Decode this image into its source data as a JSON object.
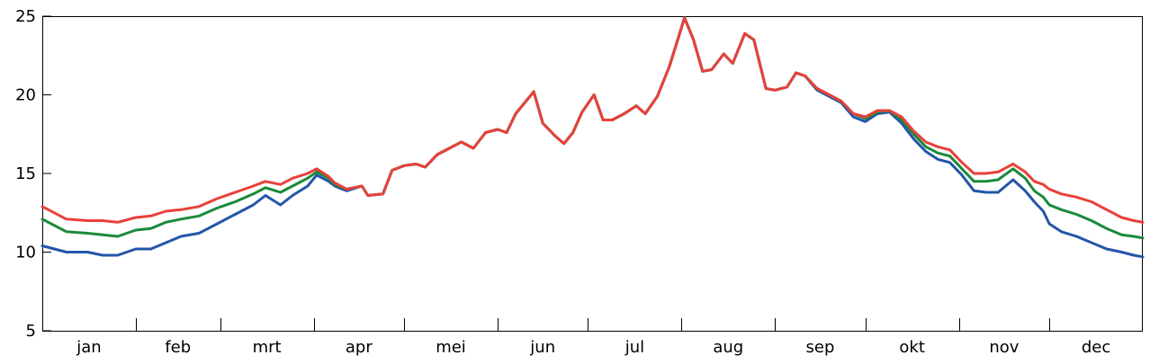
{
  "chart_data": {
    "type": "line",
    "title": "",
    "xlabel": "",
    "ylabel": "",
    "ylim": [
      5,
      25
    ],
    "xlim": [
      0,
      365
    ],
    "yticks": [
      5,
      10,
      15,
      20,
      25
    ],
    "months": [
      "jan",
      "feb",
      "mrt",
      "apr",
      "mei",
      "jun",
      "jul",
      "aug",
      "sep",
      "okt",
      "nov",
      "dec"
    ],
    "month_boundaries": [
      0,
      31,
      59,
      90,
      120,
      151,
      181,
      212,
      243,
      273,
      304,
      334,
      365
    ],
    "grid": false,
    "legend": "none",
    "series": [
      {
        "color": "#2356a8",
        "points": [
          [
            0,
            10.4
          ],
          [
            4,
            10.2
          ],
          [
            8,
            10.0
          ],
          [
            15,
            10.0
          ],
          [
            20,
            9.8
          ],
          [
            25,
            9.8
          ],
          [
            31,
            10.2
          ],
          [
            36,
            10.2
          ],
          [
            41,
            10.6
          ],
          [
            46,
            11.0
          ],
          [
            52,
            11.2
          ],
          [
            58,
            11.8
          ],
          [
            64,
            12.4
          ],
          [
            70,
            13.0
          ],
          [
            74,
            13.6
          ],
          [
            79,
            13.0
          ],
          [
            83,
            13.6
          ],
          [
            88,
            14.2
          ],
          [
            91,
            14.9
          ],
          [
            95,
            14.5
          ],
          [
            97,
            14.2
          ],
          [
            101,
            13.9
          ],
          [
            106,
            14.2
          ],
          [
            108,
            13.6
          ],
          [
            113,
            13.7
          ],
          [
            116,
            15.2
          ],
          [
            120,
            15.5
          ],
          [
            124,
            15.6
          ],
          [
            127,
            15.4
          ],
          [
            131,
            16.2
          ],
          [
            135,
            16.6
          ],
          [
            139,
            17.0
          ],
          [
            143,
            16.6
          ],
          [
            147,
            17.6
          ],
          [
            151,
            17.8
          ],
          [
            154,
            17.6
          ],
          [
            157,
            18.8
          ],
          [
            160,
            19.5
          ],
          [
            163,
            20.2
          ],
          [
            166,
            18.2
          ],
          [
            170,
            17.4
          ],
          [
            173,
            16.9
          ],
          [
            176,
            17.6
          ],
          [
            179,
            18.9
          ],
          [
            183,
            20.0
          ],
          [
            186,
            18.4
          ],
          [
            189,
            18.4
          ],
          [
            193,
            18.8
          ],
          [
            197,
            19.3
          ],
          [
            200,
            18.8
          ],
          [
            204,
            19.9
          ],
          [
            208,
            21.8
          ],
          [
            213,
            24.9
          ],
          [
            216,
            23.5
          ],
          [
            219,
            21.5
          ],
          [
            222,
            21.6
          ],
          [
            226,
            22.6
          ],
          [
            229,
            22.0
          ],
          [
            233,
            23.9
          ],
          [
            236,
            23.5
          ],
          [
            240,
            20.4
          ],
          [
            243,
            20.3
          ],
          [
            247,
            20.5
          ],
          [
            250,
            21.4
          ],
          [
            253,
            21.2
          ],
          [
            257,
            20.3
          ],
          [
            261,
            19.9
          ],
          [
            265,
            19.5
          ],
          [
            269,
            18.6
          ],
          [
            273,
            18.3
          ],
          [
            277,
            18.8
          ],
          [
            281,
            18.9
          ],
          [
            285,
            18.2
          ],
          [
            289,
            17.2
          ],
          [
            293,
            16.4
          ],
          [
            297,
            15.9
          ],
          [
            301,
            15.7
          ],
          [
            305,
            14.9
          ],
          [
            309,
            13.9
          ],
          [
            313,
            13.8
          ],
          [
            317,
            13.8
          ],
          [
            322,
            14.6
          ],
          [
            326,
            13.9
          ],
          [
            329,
            13.2
          ],
          [
            332,
            12.6
          ],
          [
            334,
            11.8
          ],
          [
            338,
            11.3
          ],
          [
            343,
            11.0
          ],
          [
            348,
            10.6
          ],
          [
            353,
            10.2
          ],
          [
            358,
            10.0
          ],
          [
            362,
            9.8
          ],
          [
            365,
            9.7
          ]
        ]
      },
      {
        "color": "#1a8a3a",
        "points": [
          [
            0,
            12.1
          ],
          [
            4,
            11.7
          ],
          [
            8,
            11.3
          ],
          [
            15,
            11.2
          ],
          [
            20,
            11.1
          ],
          [
            25,
            11.0
          ],
          [
            31,
            11.4
          ],
          [
            36,
            11.5
          ],
          [
            41,
            11.9
          ],
          [
            46,
            12.1
          ],
          [
            52,
            12.3
          ],
          [
            58,
            12.8
          ],
          [
            64,
            13.2
          ],
          [
            70,
            13.7
          ],
          [
            74,
            14.1
          ],
          [
            79,
            13.8
          ],
          [
            83,
            14.2
          ],
          [
            88,
            14.7
          ],
          [
            91,
            15.1
          ],
          [
            95,
            14.7
          ],
          [
            97,
            14.3
          ],
          [
            101,
            14.0
          ],
          [
            106,
            14.2
          ],
          [
            108,
            13.6
          ],
          [
            113,
            13.7
          ],
          [
            116,
            15.2
          ],
          [
            120,
            15.5
          ],
          [
            124,
            15.6
          ],
          [
            127,
            15.4
          ],
          [
            131,
            16.2
          ],
          [
            135,
            16.6
          ],
          [
            139,
            17.0
          ],
          [
            143,
            16.6
          ],
          [
            147,
            17.6
          ],
          [
            151,
            17.8
          ],
          [
            154,
            17.6
          ],
          [
            157,
            18.8
          ],
          [
            160,
            19.5
          ],
          [
            163,
            20.2
          ],
          [
            166,
            18.2
          ],
          [
            170,
            17.4
          ],
          [
            173,
            16.9
          ],
          [
            176,
            17.6
          ],
          [
            179,
            18.9
          ],
          [
            183,
            20.0
          ],
          [
            186,
            18.4
          ],
          [
            189,
            18.4
          ],
          [
            193,
            18.8
          ],
          [
            197,
            19.3
          ],
          [
            200,
            18.8
          ],
          [
            204,
            19.9
          ],
          [
            208,
            21.8
          ],
          [
            213,
            24.9
          ],
          [
            216,
            23.5
          ],
          [
            219,
            21.5
          ],
          [
            222,
            21.6
          ],
          [
            226,
            22.6
          ],
          [
            229,
            22.0
          ],
          [
            233,
            23.9
          ],
          [
            236,
            23.5
          ],
          [
            240,
            20.4
          ],
          [
            243,
            20.3
          ],
          [
            247,
            20.5
          ],
          [
            250,
            21.4
          ],
          [
            253,
            21.2
          ],
          [
            257,
            20.4
          ],
          [
            261,
            20.0
          ],
          [
            265,
            19.6
          ],
          [
            269,
            18.8
          ],
          [
            273,
            18.5
          ],
          [
            277,
            18.9
          ],
          [
            281,
            19.0
          ],
          [
            285,
            18.4
          ],
          [
            289,
            17.5
          ],
          [
            293,
            16.7
          ],
          [
            297,
            16.3
          ],
          [
            301,
            16.1
          ],
          [
            305,
            15.3
          ],
          [
            309,
            14.5
          ],
          [
            313,
            14.5
          ],
          [
            317,
            14.6
          ],
          [
            322,
            15.3
          ],
          [
            326,
            14.7
          ],
          [
            329,
            13.9
          ],
          [
            332,
            13.5
          ],
          [
            334,
            13.0
          ],
          [
            338,
            12.7
          ],
          [
            343,
            12.4
          ],
          [
            348,
            12.0
          ],
          [
            353,
            11.5
          ],
          [
            358,
            11.1
          ],
          [
            362,
            11.0
          ],
          [
            365,
            10.9
          ]
        ]
      },
      {
        "color": "#e8413a",
        "points": [
          [
            0,
            12.9
          ],
          [
            4,
            12.5
          ],
          [
            8,
            12.1
          ],
          [
            15,
            12.0
          ],
          [
            20,
            12.0
          ],
          [
            25,
            11.9
          ],
          [
            31,
            12.2
          ],
          [
            36,
            12.3
          ],
          [
            41,
            12.6
          ],
          [
            46,
            12.7
          ],
          [
            52,
            12.9
          ],
          [
            58,
            13.4
          ],
          [
            64,
            13.8
          ],
          [
            70,
            14.2
          ],
          [
            74,
            14.5
          ],
          [
            79,
            14.3
          ],
          [
            83,
            14.7
          ],
          [
            88,
            15.0
          ],
          [
            91,
            15.3
          ],
          [
            95,
            14.8
          ],
          [
            97,
            14.4
          ],
          [
            101,
            14.0
          ],
          [
            106,
            14.2
          ],
          [
            108,
            13.6
          ],
          [
            113,
            13.7
          ],
          [
            116,
            15.2
          ],
          [
            120,
            15.5
          ],
          [
            124,
            15.6
          ],
          [
            127,
            15.4
          ],
          [
            131,
            16.2
          ],
          [
            135,
            16.6
          ],
          [
            139,
            17.0
          ],
          [
            143,
            16.6
          ],
          [
            147,
            17.6
          ],
          [
            151,
            17.8
          ],
          [
            154,
            17.6
          ],
          [
            157,
            18.8
          ],
          [
            160,
            19.5
          ],
          [
            163,
            20.2
          ],
          [
            166,
            18.2
          ],
          [
            170,
            17.4
          ],
          [
            173,
            16.9
          ],
          [
            176,
            17.6
          ],
          [
            179,
            18.9
          ],
          [
            183,
            20.0
          ],
          [
            186,
            18.4
          ],
          [
            189,
            18.4
          ],
          [
            193,
            18.8
          ],
          [
            197,
            19.3
          ],
          [
            200,
            18.8
          ],
          [
            204,
            19.9
          ],
          [
            208,
            21.8
          ],
          [
            213,
            24.9
          ],
          [
            216,
            23.5
          ],
          [
            219,
            21.5
          ],
          [
            222,
            21.6
          ],
          [
            226,
            22.6
          ],
          [
            229,
            22.0
          ],
          [
            233,
            23.9
          ],
          [
            236,
            23.5
          ],
          [
            240,
            20.4
          ],
          [
            243,
            20.3
          ],
          [
            247,
            20.5
          ],
          [
            250,
            21.4
          ],
          [
            253,
            21.2
          ],
          [
            257,
            20.4
          ],
          [
            261,
            20.0
          ],
          [
            265,
            19.6
          ],
          [
            269,
            18.8
          ],
          [
            273,
            18.6
          ],
          [
            277,
            19.0
          ],
          [
            281,
            19.0
          ],
          [
            285,
            18.6
          ],
          [
            289,
            17.7
          ],
          [
            293,
            17.0
          ],
          [
            297,
            16.7
          ],
          [
            301,
            16.5
          ],
          [
            305,
            15.7
          ],
          [
            309,
            15.0
          ],
          [
            313,
            15.0
          ],
          [
            317,
            15.1
          ],
          [
            322,
            15.6
          ],
          [
            326,
            15.1
          ],
          [
            329,
            14.5
          ],
          [
            332,
            14.3
          ],
          [
            334,
            14.0
          ],
          [
            338,
            13.7
          ],
          [
            343,
            13.5
          ],
          [
            348,
            13.2
          ],
          [
            353,
            12.7
          ],
          [
            358,
            12.2
          ],
          [
            362,
            12.0
          ],
          [
            365,
            11.9
          ]
        ]
      }
    ]
  }
}
